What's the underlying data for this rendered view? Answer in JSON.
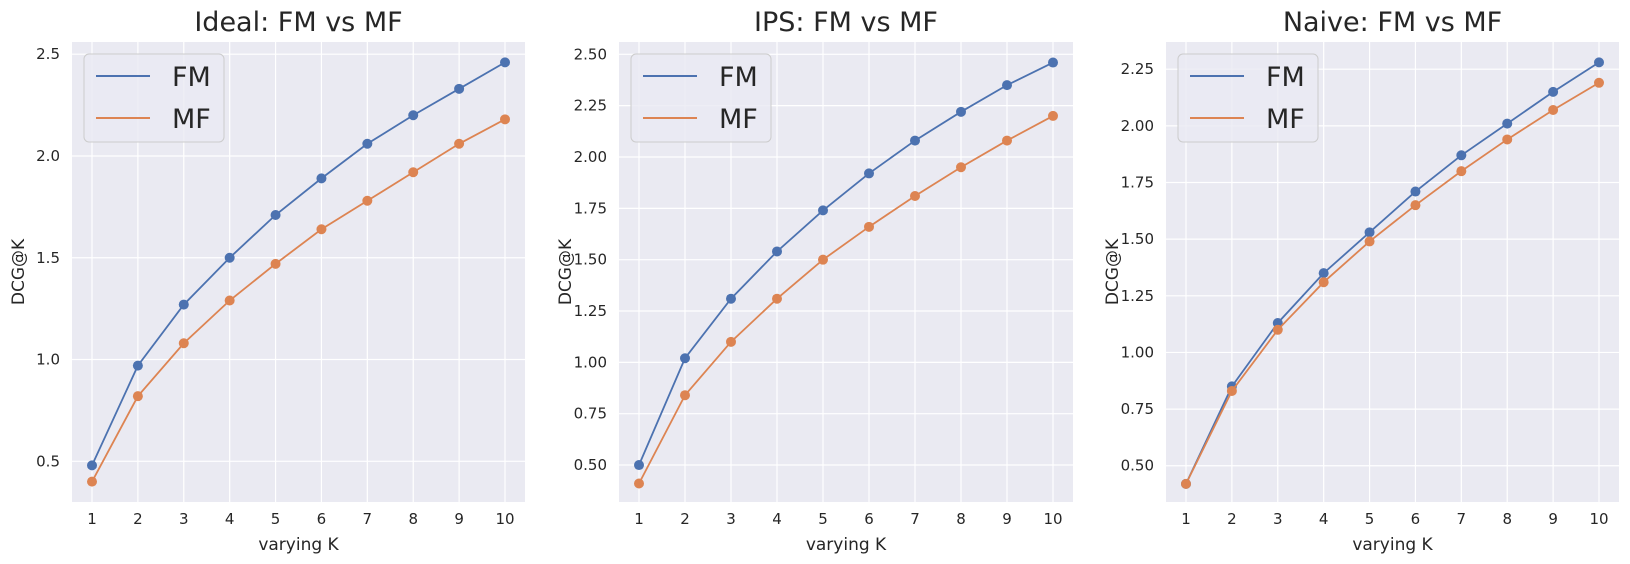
{
  "figure": {
    "colors": {
      "background": "#EAEAF2",
      "grid": "#FFFFFF",
      "FM": "#4C72B0",
      "MF": "#DD8452",
      "text": "#262626"
    }
  },
  "chart_data": [
    {
      "type": "line",
      "title": "Ideal: FM vs MF",
      "xlabel": "varying K",
      "ylabel": "DCG@K",
      "x": [
        1,
        2,
        3,
        4,
        5,
        6,
        7,
        8,
        9,
        10
      ],
      "xticks": [
        "1",
        "2",
        "3",
        "4",
        "5",
        "6",
        "7",
        "8",
        "9",
        "10"
      ],
      "yticks": [
        "0.5",
        "1.0",
        "1.5",
        "2.0",
        "2.5"
      ],
      "ylim": [
        0.3,
        2.56
      ],
      "grid": true,
      "legend_position": "upper left",
      "series": [
        {
          "name": "FM",
          "values": [
            0.48,
            0.97,
            1.27,
            1.5,
            1.71,
            1.89,
            2.06,
            2.2,
            2.33,
            2.46
          ]
        },
        {
          "name": "MF",
          "values": [
            0.4,
            0.82,
            1.08,
            1.29,
            1.47,
            1.64,
            1.78,
            1.92,
            2.06,
            2.18
          ]
        }
      ]
    },
    {
      "type": "line",
      "title": "IPS: FM vs MF",
      "xlabel": "varying K",
      "ylabel": "DCG@K",
      "x": [
        1,
        2,
        3,
        4,
        5,
        6,
        7,
        8,
        9,
        10
      ],
      "xticks": [
        "1",
        "2",
        "3",
        "4",
        "5",
        "6",
        "7",
        "8",
        "9",
        "10"
      ],
      "yticks": [
        "0.50",
        "0.75",
        "1.00",
        "1.25",
        "1.50",
        "1.75",
        "2.00",
        "2.25",
        "2.50"
      ],
      "ylim": [
        0.32,
        2.56
      ],
      "grid": true,
      "legend_position": "upper left",
      "series": [
        {
          "name": "FM",
          "values": [
            0.5,
            1.02,
            1.31,
            1.54,
            1.74,
            1.92,
            2.08,
            2.22,
            2.35,
            2.46
          ]
        },
        {
          "name": "MF",
          "values": [
            0.41,
            0.84,
            1.1,
            1.31,
            1.5,
            1.66,
            1.81,
            1.95,
            2.08,
            2.2
          ]
        }
      ]
    },
    {
      "type": "line",
      "title": "Naive: FM vs MF",
      "xlabel": "varying K",
      "ylabel": "DCG@K",
      "x": [
        1,
        2,
        3,
        4,
        5,
        6,
        7,
        8,
        9,
        10
      ],
      "xticks": [
        "1",
        "2",
        "3",
        "4",
        "5",
        "6",
        "7",
        "8",
        "9",
        "10"
      ],
      "yticks": [
        "0.50",
        "0.75",
        "1.00",
        "1.25",
        "1.50",
        "1.75",
        "2.00",
        "2.25"
      ],
      "ylim": [
        0.34,
        2.37
      ],
      "grid": true,
      "legend_position": "upper left",
      "series": [
        {
          "name": "FM",
          "values": [
            0.42,
            0.85,
            1.13,
            1.35,
            1.53,
            1.71,
            1.87,
            2.01,
            2.15,
            2.28
          ]
        },
        {
          "name": "MF",
          "values": [
            0.42,
            0.83,
            1.1,
            1.31,
            1.49,
            1.65,
            1.8,
            1.94,
            2.07,
            2.19
          ]
        }
      ]
    }
  ]
}
